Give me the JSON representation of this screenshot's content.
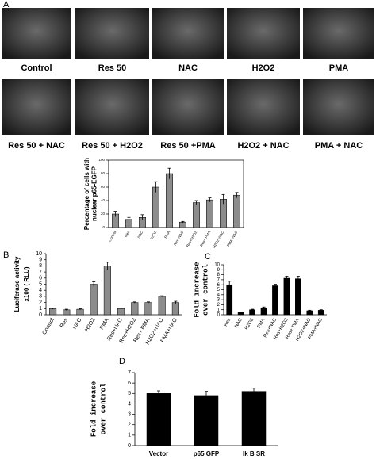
{
  "panel_labels": [
    "A",
    "B",
    "C",
    "D"
  ],
  "images": [
    {
      "label": "Control"
    },
    {
      "label": "Res 50"
    },
    {
      "label": "NAC"
    },
    {
      "label": "H2O2"
    },
    {
      "label": "PMA"
    },
    {
      "label": "Res 50 + NAC"
    },
    {
      "label": "Res 50 + H2O2"
    },
    {
      "label": "Res 50 +PMA"
    },
    {
      "label": "H2O2 + NAC"
    },
    {
      "label": "PMA  + NAC"
    }
  ],
  "chart_data": [
    {
      "type": "bar",
      "ylabel": [
        "Percentage of cells with",
        "nuclear p65-EGFP"
      ],
      "categories": [
        "Control",
        "Res",
        "NAC",
        "H2O2",
        "PMA",
        "Res+NAC",
        "Res+H2O2",
        "Res+ PMA",
        "H2O2+NAC",
        "PMA+NAC"
      ],
      "values": [
        20,
        12,
        15,
        60,
        80,
        8,
        37,
        41,
        42,
        48
      ],
      "errors": [
        4,
        3,
        4,
        8,
        8,
        1,
        3,
        3,
        7,
        4
      ],
      "color": "#8c8c8c",
      "ylim": [
        0,
        100
      ],
      "yticks": [
        0,
        20,
        40,
        60,
        80,
        100
      ]
    },
    {
      "type": "bar",
      "ylabel": [
        "Luciferase activity",
        "x100 ( RLU)"
      ],
      "categories": [
        "Control",
        "Res",
        "NAC",
        "H2O2",
        "PMA",
        "Res+NAC",
        "Res+H2O2",
        "Res+ PMA",
        "H2O2+NAC",
        "PMA+NAC"
      ],
      "values": [
        1,
        0.8,
        0.9,
        5,
        8,
        1,
        2,
        2,
        3,
        2
      ],
      "errors": [
        0.1,
        0.1,
        0.1,
        0.4,
        0.6,
        0.1,
        0.1,
        0.1,
        0.1,
        0.2
      ],
      "color": "#8c8c8c",
      "ylim": [
        0,
        10
      ],
      "yticks": [
        0,
        1,
        2,
        3,
        4,
        5,
        6,
        7,
        8,
        9,
        10
      ]
    },
    {
      "type": "bar",
      "ylabel": [
        "Fold increase",
        "over control"
      ],
      "categories": [
        "Res",
        "NAC",
        "H2O2",
        "PMA",
        "Res+NAC",
        "Res+H2O2",
        "Res+ PMA",
        "H2O2+NAC",
        "PMA+NAC"
      ],
      "values": [
        6,
        0.5,
        1,
        1.4,
        5.8,
        7.3,
        7.2,
        0.8,
        0.9
      ],
      "errors": [
        0.7,
        0.05,
        0.1,
        0.15,
        0.3,
        0.4,
        0.5,
        0.1,
        0.1
      ],
      "color": "#000000",
      "ylim": [
        0,
        10
      ],
      "yticks": [
        0,
        1,
        2,
        3,
        4,
        5,
        6,
        7,
        8,
        9,
        10
      ]
    },
    {
      "type": "bar",
      "ylabel": [
        "Fold increase",
        "over control"
      ],
      "categories": [
        "Vector",
        "p65 GFP",
        "Ik B SR"
      ],
      "values": [
        5,
        4.8,
        5.2
      ],
      "errors": [
        0.25,
        0.4,
        0.3
      ],
      "color": "#000000",
      "ylim": [
        0,
        7
      ],
      "yticks": [
        0,
        1,
        2,
        3,
        4,
        5,
        6,
        7
      ]
    }
  ]
}
